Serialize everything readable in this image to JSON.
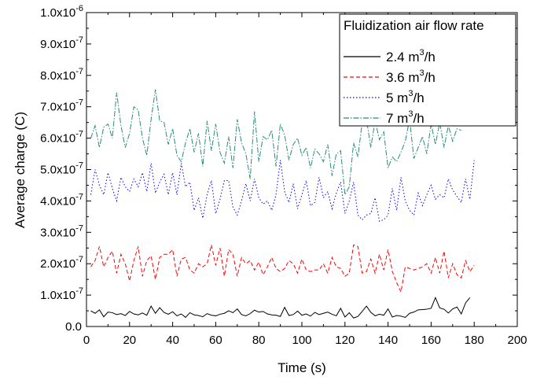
{
  "chart_data": {
    "type": "line",
    "title": "",
    "xlabel": "Time (s)",
    "ylabel": "Average charge (C)",
    "xlim": [
      0,
      200
    ],
    "ylim": [
      0,
      1e-06
    ],
    "x_ticks": [
      "0",
      "20",
      "40",
      "60",
      "80",
      "100",
      "120",
      "140",
      "160",
      "180",
      "200"
    ],
    "y_ticks": [
      {
        "mant": "0.0",
        "exp": ""
      },
      {
        "mant": "1.0x10",
        "exp": "-7"
      },
      {
        "mant": "2.0x10",
        "exp": "-7"
      },
      {
        "mant": "3.0x10",
        "exp": "-7"
      },
      {
        "mant": "4.0x10",
        "exp": "-7"
      },
      {
        "mant": "5.0x10",
        "exp": "-7"
      },
      {
        "mant": "6.0x10",
        "exp": "-7"
      },
      {
        "mant": "7.0x10",
        "exp": "-7"
      },
      {
        "mant": "8.0x10",
        "exp": "-7"
      },
      {
        "mant": "9.0x10",
        "exp": "-7"
      },
      {
        "mant": "1.0x10",
        "exp": "-6"
      }
    ],
    "grid": false,
    "legend": {
      "title": "Fluidization air flow rate",
      "position": "top-right"
    },
    "series": [
      {
        "label": {
          "pre": "2.4 m",
          "sup": "3",
          "post": "/h"
        },
        "color": "#000000",
        "dash": "",
        "x_start": 2,
        "x_step": 2,
        "values": [
          5e-08,
          4.2e-08,
          5.3e-08,
          3.1e-08,
          4.6e-08,
          4.4e-08,
          3.8e-08,
          4.1e-08,
          3.5e-08,
          4.8e-08,
          4e-08,
          3.7e-08,
          4.3e-08,
          3.6e-08,
          6.5e-08,
          4.2e-08,
          6e-08,
          4.5e-08,
          3.9e-08,
          4.7e-08,
          3.4e-08,
          4e-08,
          2.9e-08,
          4.4e-08,
          3.7e-08,
          3.5e-08,
          3.1e-08,
          4.1e-08,
          3.6e-08,
          3.4e-08,
          3.9e-08,
          4.2e-08,
          5e-08,
          4.4e-08,
          5.6e-08,
          3.8e-08,
          3.4e-08,
          4.1e-08,
          5.2e-08,
          4.6e-08,
          4.8e-08,
          4e-08,
          3.7e-08,
          3.6e-08,
          3.2e-08,
          6.1e-08,
          3.5e-08,
          3.8e-08,
          4.9e-08,
          3.6e-08,
          4e-08,
          3.3e-08,
          4.5e-08,
          3.8e-08,
          4.2e-08,
          4.6e-08,
          3.9e-08,
          3.4e-08,
          5.8e-08,
          3e-08,
          4.4e-08,
          2.7e-08,
          3.2e-08,
          4.8e-08,
          6.5e-08,
          4.5e-08,
          3.4e-08,
          3.9e-08,
          3.6e-08,
          5.6e-08,
          3e-08,
          3.5e-08,
          3.3e-08,
          2.9e-08,
          4.2e-08,
          4.6e-08,
          5.3e-08,
          5.4e-08,
          5.5e-08,
          5.8e-08,
          9.2e-08,
          5.9e-08,
          5.5e-08,
          4.3e-08,
          5.6e-08,
          6.2e-08,
          4e-08,
          7.5e-08,
          9.2e-08
        ]
      },
      {
        "label": {
          "pre": "3.6 m",
          "sup": "3",
          "post": "/h"
        },
        "color": "#ff0000",
        "dash": "5,3",
        "x_start": 2,
        "x_step": 2,
        "values": [
          1.9e-07,
          2.1e-07,
          2.55e-07,
          1.9e-07,
          2.2e-07,
          2.4e-07,
          1.7e-07,
          2.3e-07,
          2e-07,
          1.45e-07,
          2.1e-07,
          2.55e-07,
          1.6e-07,
          2.1e-07,
          2.25e-07,
          1.5e-07,
          2.2e-07,
          2.3e-07,
          2.3e-07,
          2.45e-07,
          1.6e-07,
          2.15e-07,
          2.2e-07,
          1.8e-07,
          1.7e-07,
          2e-07,
          1.9e-07,
          2e-07,
          2.6e-07,
          1.95e-07,
          2.5e-07,
          1.6e-07,
          2.45e-07,
          2.3e-07,
          1.6e-07,
          2.2e-07,
          2e-07,
          2.1e-07,
          1.8e-07,
          2.05e-07,
          1.65e-07,
          1.9e-07,
          2.2e-07,
          1.85e-07,
          1.75e-07,
          1.85e-07,
          2.1e-07,
          2e-07,
          1.7e-07,
          2.15e-07,
          1.8e-07,
          1.75e-07,
          1.8e-07,
          1.8e-07,
          2e-07,
          1.7e-07,
          2.2e-07,
          1.9e-07,
          1.85e-07,
          1.6e-07,
          1.7e-07,
          2.6e-07,
          2.55e-07,
          1.7e-07,
          1.75e-07,
          2.15e-07,
          1.7e-07,
          2.3e-07,
          1.8e-07,
          2.45e-07,
          1.75e-07,
          1.4e-07,
          1.1e-07,
          1.9e-07,
          1.85e-07,
          1.8e-07,
          1.85e-07,
          1.9e-07,
          2e-07,
          1.7e-07,
          2.2e-07,
          1.7e-07,
          2.4e-07,
          1.55e-07,
          2e-07,
          1.65e-07,
          1.55e-07,
          2.1e-07,
          1.75e-07,
          1.95e-07
        ]
      },
      {
        "label": {
          "pre": "5 m",
          "sup": "3",
          "post": "/h"
        },
        "color": "#0000ff",
        "dash": "1.5,2.5",
        "x_start": 2,
        "x_step": 2,
        "values": [
          4.2e-07,
          5e-07,
          4.5e-07,
          4.2e-07,
          4.9e-07,
          4.4e-07,
          4e-07,
          4.75e-07,
          4.45e-07,
          4.3e-07,
          4.7e-07,
          4.45e-07,
          4.9e-07,
          4.3e-07,
          5.2e-07,
          4.25e-07,
          4.6e-07,
          4.85e-07,
          4.2e-07,
          4.9e-07,
          4.2e-07,
          5.2e-07,
          4.45e-07,
          4.6e-07,
          3.7e-07,
          4.1e-07,
          3.45e-07,
          4.2e-07,
          4.65e-07,
          3.6e-07,
          4.05e-07,
          4.65e-07,
          4.65e-07,
          3.8e-07,
          3.55e-07,
          4e-07,
          4.55e-07,
          4e-07,
          4.7e-07,
          4.1e-07,
          3.9e-07,
          4e-07,
          3.7e-07,
          4.2e-07,
          5.3e-07,
          4.3e-07,
          3.95e-07,
          4.55e-07,
          3.75e-07,
          4.2e-07,
          4.65e-07,
          3.85e-07,
          3.95e-07,
          4.75e-07,
          4.1e-07,
          4.3e-07,
          3.75e-07,
          4.25e-07,
          4.6e-07,
          3.6e-07,
          4e-07,
          4.6e-07,
          3.55e-07,
          3.4e-07,
          3.55e-07,
          3.6e-07,
          4.1e-07,
          3.35e-07,
          3.4e-07,
          3.55e-07,
          4.4e-07,
          3.7e-07,
          4.75e-07,
          4e-07,
          3.7e-07,
          3.55e-07,
          4.25e-07,
          3.85e-07,
          4.2e-07,
          4.5e-07,
          4.05e-07,
          4.2e-07,
          4.1e-07,
          4.7e-07,
          4.35e-07,
          4.15e-07,
          3.95e-07,
          4.7e-07,
          4.05e-07,
          5.3e-07
        ]
      },
      {
        "label": {
          "pre": "7 m",
          "sup": "3",
          "post": "/h"
        },
        "color": "#2a8a7a",
        "dash": "7,2,1.5,2",
        "x_start": 2,
        "x_step": 2,
        "values": [
          6e-07,
          6.4e-07,
          5.7e-07,
          6.35e-07,
          6.45e-07,
          6e-07,
          7.45e-07,
          6.4e-07,
          5.7e-07,
          6.15e-07,
          7e-07,
          6.9e-07,
          6e-07,
          5.45e-07,
          6.6e-07,
          7.55e-07,
          6.55e-07,
          6.5e-07,
          5.8e-07,
          6.3e-07,
          5.45e-07,
          5.25e-07,
          5.85e-07,
          6.3e-07,
          5.55e-07,
          6.15e-07,
          5.1e-07,
          6.55e-07,
          5.6e-07,
          6.45e-07,
          5.55e-07,
          5.2e-07,
          6.05e-07,
          5.05e-07,
          6.6e-07,
          5.85e-07,
          5.5e-07,
          4.7e-07,
          6.85e-07,
          5.25e-07,
          6.05e-07,
          5.95e-07,
          6.25e-07,
          5.1e-07,
          6.45e-07,
          6.1e-07,
          5.3e-07,
          5.8e-07,
          6e-07,
          5.45e-07,
          5.7e-07,
          5.05e-07,
          5.65e-07,
          5.5e-07,
          5.25e-07,
          5.8e-07,
          4.8e-07,
          5.5e-07,
          5.6e-07,
          4.2e-07,
          4.45e-07,
          5.85e-07,
          5.4e-07,
          6.5e-07,
          6.6e-07,
          5.7e-07,
          6.55e-07,
          5.95e-07,
          6.2e-07,
          5.05e-07,
          5.4e-07,
          5.25e-07,
          5.55e-07,
          5.9e-07,
          6.6e-07,
          5.35e-07,
          5.7e-07,
          6.05e-07,
          5.5e-07,
          6.45e-07,
          5.8e-07,
          6.5e-07,
          5.7e-07,
          6.4e-07,
          5.9e-07,
          6.3e-07,
          6.25e-07
        ]
      }
    ]
  }
}
